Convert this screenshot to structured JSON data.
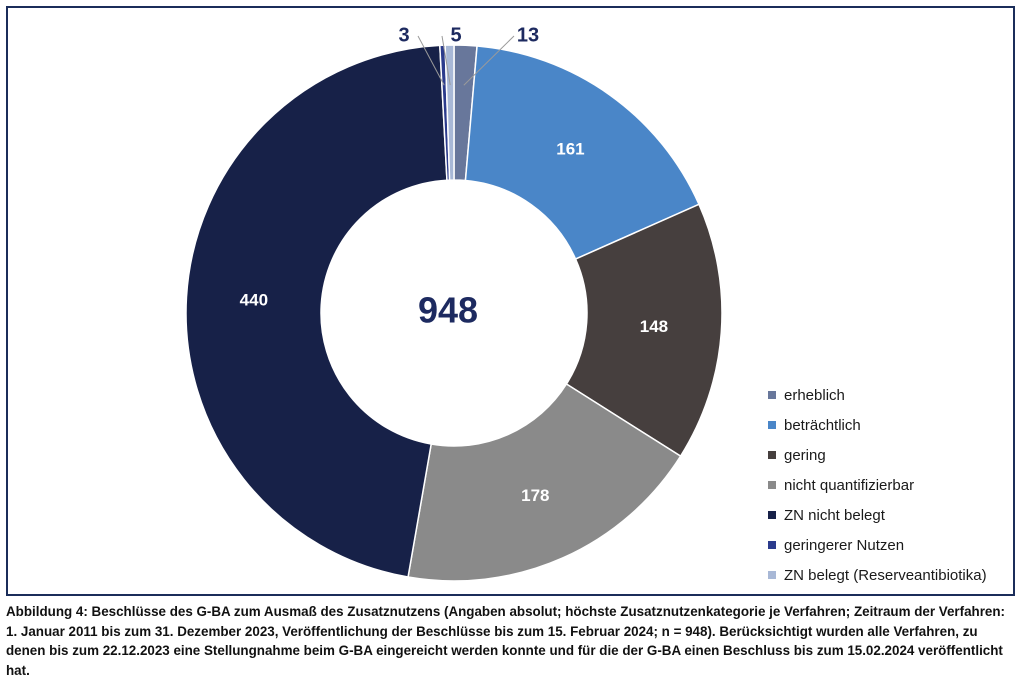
{
  "chart_data": {
    "type": "pie",
    "variant": "donut",
    "center_label": "948",
    "categories": [
      "erheblich",
      "beträchtlich",
      "gering",
      "nicht quantifizierbar",
      "ZN nicht belegt",
      "geringerer Nutzen",
      "ZN belegt (Reserveantibiotika)"
    ],
    "values": [
      13,
      161,
      148,
      178,
      440,
      3,
      5
    ],
    "colors": [
      "#68779b",
      "#4a86c8",
      "#463f3e",
      "#8a8a8a",
      "#172148",
      "#2b3b8c",
      "#a8b8d6"
    ],
    "legend_position": "right"
  },
  "caption": "Abbildung 4: Beschlüsse des G-BA zum Ausmaß des Zusatznutzens (Angaben absolut; höchste Zusatznutzenkategorie je Verfahren; Zeitraum der Verfahren: 1. Januar 2011 bis zum 31. Dezember 2023, Veröffentlichung der Beschlüsse bis zum 15. Februar 2024; n = 948). Berücksichtigt wurden alle Verfahren, zu denen bis zum 22.12.2023 eine Stellungnahme beim G-BA eingereicht werden konnte und für die der G-BA einen Beschluss bis zum 15.02.2024 veröffentlicht hat."
}
